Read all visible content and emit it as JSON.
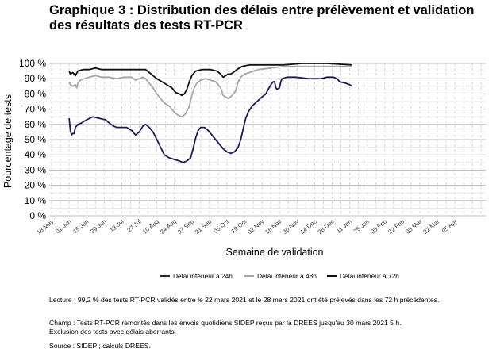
{
  "title_line1": "Graphique 3 : Distribution des délais entre prélèvement et validation",
  "title_line2": "des résultats des tests RT-PCR",
  "chart_data": {
    "type": "line",
    "xlabel": "Semaine de validation",
    "ylabel": "Pourcentage de tests",
    "ylim": [
      0,
      100
    ],
    "yticks": [
      "0 %",
      "10 %",
      "20 %",
      "30 %",
      "40 %",
      "50 %",
      "60 %",
      "70 %",
      "80 %",
      "90 %",
      "100 %"
    ],
    "xticks": [
      "18 May",
      "01 Jun",
      "15 Jun",
      "29 Jun",
      "13 Jul",
      "27 Jul",
      "10 Aug",
      "24 Aug",
      "07 Sep",
      "21 Sep",
      "05 Oct",
      "19 Oct",
      "02 Nov",
      "16 Nov",
      "30 Nov",
      "14 Dec",
      "28 Dec",
      "11 Jan",
      "25 Jan",
      "08 Feb",
      "22 Feb",
      "08 Mar",
      "22 Mar",
      "05 Apr"
    ],
    "grid": true,
    "legend_position": "bottom",
    "series": [
      {
        "name": "Délai inférieur à 24h",
        "color": "#1a1a5e",
        "points": [
          [
            14,
            64
          ],
          [
            15,
            56
          ],
          [
            16,
            53
          ],
          [
            17,
            54
          ],
          [
            18,
            54
          ],
          [
            19,
            58
          ],
          [
            21,
            60
          ],
          [
            24,
            61
          ],
          [
            28,
            63
          ],
          [
            33,
            65
          ],
          [
            38,
            64
          ],
          [
            43,
            63
          ],
          [
            46,
            61
          ],
          [
            49,
            59
          ],
          [
            52,
            58
          ],
          [
            56,
            58
          ],
          [
            60,
            58
          ],
          [
            64,
            56
          ],
          [
            67,
            53
          ],
          [
            70,
            55
          ],
          [
            73,
            59
          ],
          [
            75,
            60
          ],
          [
            78,
            58
          ],
          [
            81,
            55
          ],
          [
            84,
            50
          ],
          [
            87,
            45
          ],
          [
            90,
            40
          ],
          [
            94,
            38
          ],
          [
            98,
            37
          ],
          [
            102,
            36
          ],
          [
            105,
            35
          ],
          [
            108,
            36
          ],
          [
            111,
            38
          ],
          [
            113,
            44
          ],
          [
            115,
            51
          ],
          [
            117,
            56
          ],
          [
            119,
            58
          ],
          [
            122,
            58
          ],
          [
            125,
            56
          ],
          [
            128,
            53
          ],
          [
            131,
            50
          ],
          [
            134,
            47
          ],
          [
            137,
            44
          ],
          [
            140,
            42
          ],
          [
            143,
            41
          ],
          [
            146,
            42
          ],
          [
            149,
            45
          ],
          [
            151,
            50
          ],
          [
            153,
            57
          ],
          [
            155,
            64
          ],
          [
            157,
            68
          ],
          [
            160,
            72
          ],
          [
            164,
            75
          ],
          [
            168,
            78
          ],
          [
            171,
            80
          ],
          [
            175,
            86
          ],
          [
            177,
            88
          ],
          [
            178,
            88
          ],
          [
            179,
            84
          ],
          [
            180,
            83
          ],
          [
            182,
            84
          ],
          [
            183,
            88
          ],
          [
            184,
            90
          ],
          [
            188,
            91
          ],
          [
            195,
            91
          ],
          [
            205,
            90
          ],
          [
            215,
            90
          ],
          [
            220,
            91
          ],
          [
            225,
            91
          ],
          [
            228,
            90
          ],
          [
            230,
            88
          ],
          [
            235,
            87
          ],
          [
            238,
            86
          ],
          [
            240,
            85
          ]
        ]
      },
      {
        "name": "Délai inférieur à 48h",
        "color": "#a6a6a6",
        "points": [
          [
            14,
            88
          ],
          [
            15,
            86
          ],
          [
            17,
            85
          ],
          [
            19,
            86
          ],
          [
            20,
            84
          ],
          [
            21,
            87
          ],
          [
            23,
            89
          ],
          [
            26,
            90
          ],
          [
            30,
            91
          ],
          [
            35,
            92
          ],
          [
            40,
            91
          ],
          [
            46,
            91
          ],
          [
            52,
            90
          ],
          [
            58,
            91
          ],
          [
            64,
            91
          ],
          [
            67,
            89
          ],
          [
            70,
            90
          ],
          [
            73,
            91
          ],
          [
            75,
            90
          ],
          [
            78,
            87
          ],
          [
            81,
            84
          ],
          [
            84,
            80
          ],
          [
            87,
            77
          ],
          [
            90,
            74
          ],
          [
            94,
            72
          ],
          [
            98,
            68
          ],
          [
            101,
            66
          ],
          [
            104,
            65
          ],
          [
            107,
            67
          ],
          [
            110,
            72
          ],
          [
            112,
            79
          ],
          [
            114,
            84
          ],
          [
            116,
            87
          ],
          [
            119,
            89
          ],
          [
            123,
            90
          ],
          [
            127,
            89
          ],
          [
            131,
            88
          ],
          [
            135,
            84
          ],
          [
            137,
            79
          ],
          [
            139,
            78
          ],
          [
            141,
            77
          ],
          [
            143,
            78
          ],
          [
            145,
            80
          ],
          [
            147,
            82
          ],
          [
            149,
            88
          ],
          [
            151,
            91
          ],
          [
            154,
            93
          ],
          [
            158,
            94
          ],
          [
            165,
            96
          ],
          [
            175,
            97
          ],
          [
            185,
            98
          ],
          [
            200,
            98
          ],
          [
            220,
            98
          ],
          [
            240,
            98
          ]
        ]
      },
      {
        "name": "Délai inférieur à 72h",
        "color": "#111111",
        "points": [
          [
            14,
            95
          ],
          [
            15,
            93
          ],
          [
            17,
            94
          ],
          [
            19,
            92
          ],
          [
            21,
            95
          ],
          [
            25,
            96
          ],
          [
            30,
            96
          ],
          [
            35,
            97
          ],
          [
            40,
            96
          ],
          [
            50,
            96
          ],
          [
            60,
            96
          ],
          [
            65,
            96
          ],
          [
            70,
            96
          ],
          [
            75,
            96
          ],
          [
            78,
            94
          ],
          [
            81,
            92
          ],
          [
            84,
            90
          ],
          [
            88,
            88
          ],
          [
            92,
            86
          ],
          [
            96,
            84
          ],
          [
            99,
            81
          ],
          [
            102,
            80
          ],
          [
            104,
            79
          ],
          [
            106,
            80
          ],
          [
            108,
            83
          ],
          [
            110,
            88
          ],
          [
            112,
            92
          ],
          [
            115,
            95
          ],
          [
            120,
            96
          ],
          [
            127,
            96
          ],
          [
            132,
            95
          ],
          [
            135,
            93
          ],
          [
            137,
            91
          ],
          [
            139,
            92
          ],
          [
            141,
            93
          ],
          [
            143,
            93
          ],
          [
            145,
            94
          ],
          [
            148,
            96
          ],
          [
            152,
            98
          ],
          [
            158,
            99
          ],
          [
            170,
            99
          ],
          [
            185,
            99
          ],
          [
            200,
            100
          ],
          [
            220,
            100
          ],
          [
            240,
            99
          ]
        ]
      }
    ]
  },
  "notes": {
    "lecture": "Lecture : 99,2 % des tests RT-PCR validés entre le 22 mars 2021 et le 28 mars 2021 ont été prélevés dans les 72 h précédentes.",
    "champ_line1": "Champ : Tests RT-PCR remontés dans les envois quotidiens SIDEP reçus par la DREES jusqu'au 30 mars 2021 5 h.",
    "champ_line2": "Exclusion des tests avec délais aberrants.",
    "source": "Source : SIDEP ; calculs DREES."
  }
}
